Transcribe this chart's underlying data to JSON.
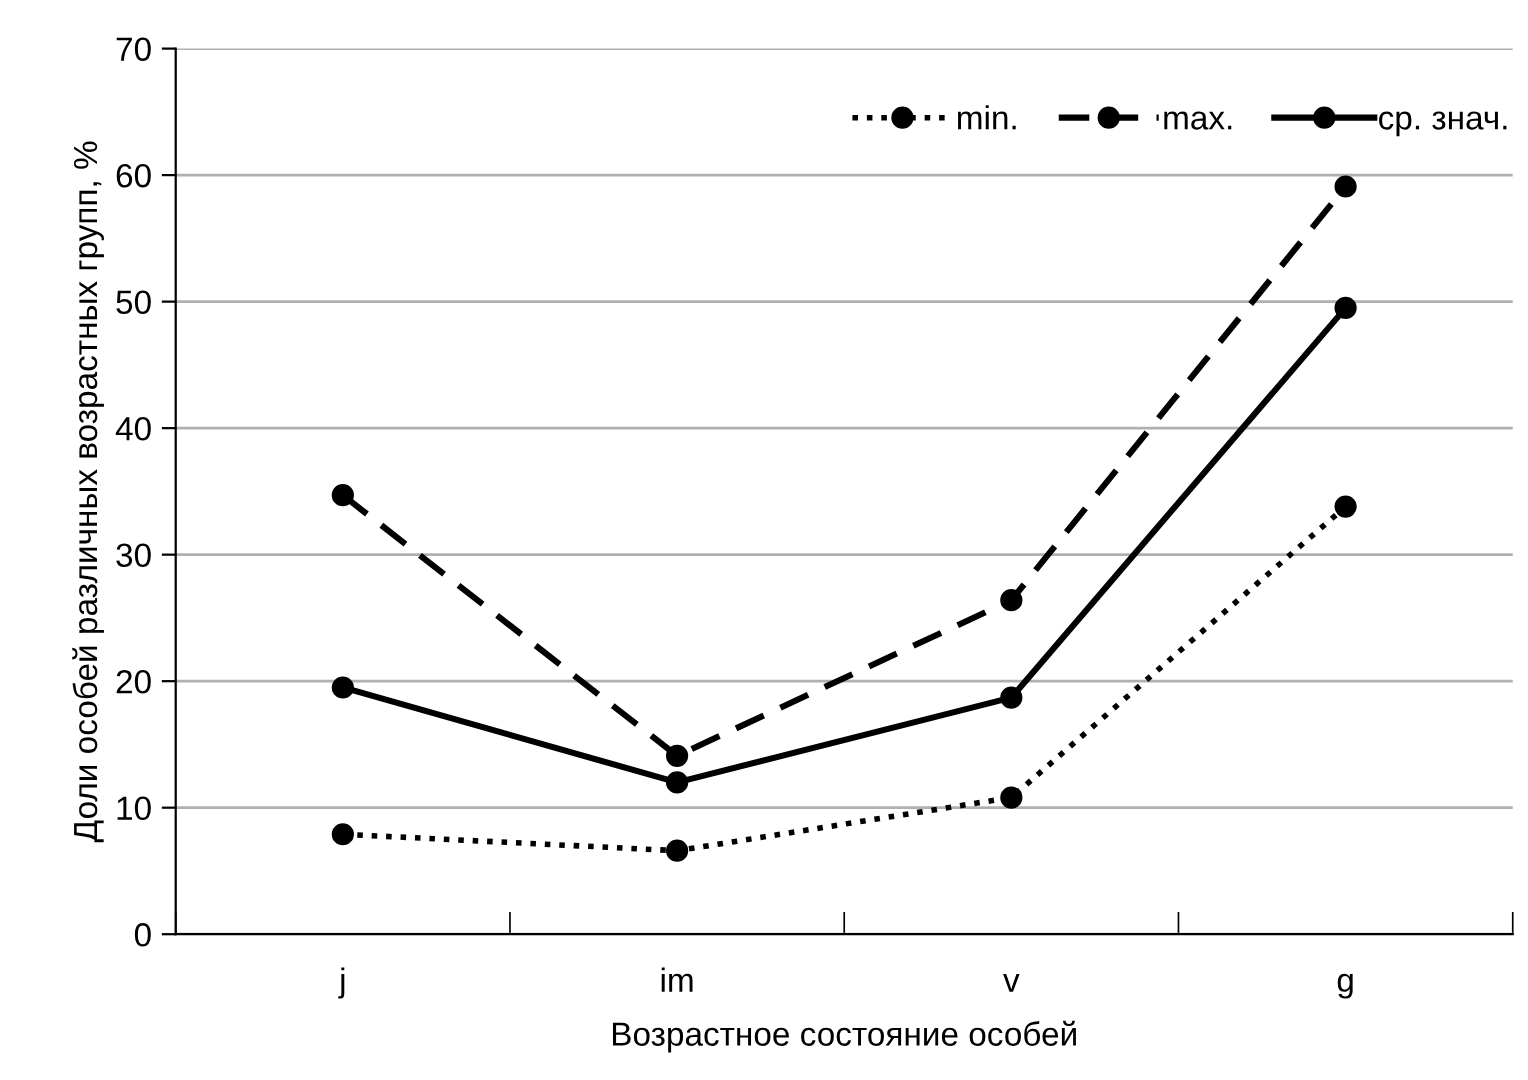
{
  "chart_data": {
    "type": "line",
    "xlabel": "Возрастное состояние особей",
    "ylabel": "Доли особей различных возрастных групп, %",
    "categories": [
      "j",
      "im",
      "v",
      "g"
    ],
    "series": [
      {
        "name": "min.",
        "color": "#000000",
        "line_style": "dotted",
        "values": [
          7.9,
          6.6,
          10.8,
          33.8
        ]
      },
      {
        "name": "max.",
        "color": "#000000",
        "line_style": "dashed",
        "values": [
          34.7,
          14.1,
          26.4,
          59.1
        ]
      },
      {
        "name": "ср. знач.",
        "color": "#000000",
        "line_style": "solid",
        "values": [
          19.5,
          12.0,
          18.7,
          49.5
        ]
      }
    ],
    "marker": "circle",
    "ylim": [
      0,
      70
    ],
    "yticks": [
      0,
      10,
      20,
      30,
      40,
      50,
      60,
      70
    ],
    "grid": "y",
    "legend": "top right"
  }
}
